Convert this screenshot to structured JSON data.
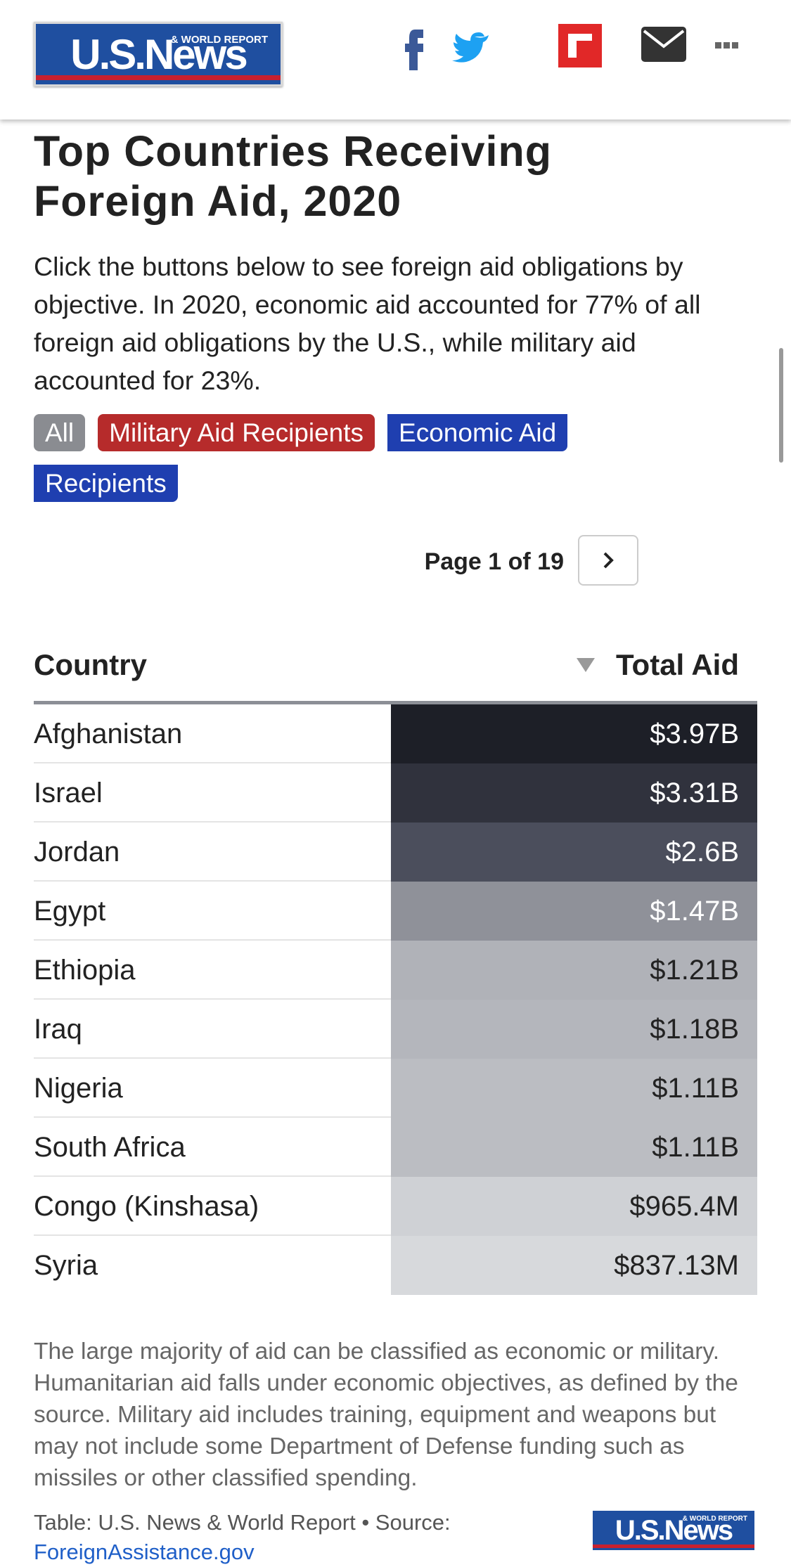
{
  "header": {
    "logo": {
      "name": "U.S.News",
      "tagline": "& WORLD REPORT"
    }
  },
  "title": "Top Countries Receiving Foreign Aid, 2020",
  "description": "Click the buttons below to see foreign aid obligations by objective. In 2020, economic aid accounted for 77% of all foreign aid obligations by the U.S., while military aid accounted for 23%.",
  "filters": [
    "All",
    "Military Aid Recipients",
    "Economic Aid Recipients"
  ],
  "pagination": "Page 1 of 19",
  "table": {
    "columns": [
      "Country",
      "Total Aid"
    ],
    "rows": [
      [
        "Afghanistan",
        "$3.97B"
      ],
      [
        "Israel",
        "$3.31B"
      ],
      [
        "Jordan",
        "$2.6B"
      ],
      [
        "Egypt",
        "$1.47B"
      ],
      [
        "Ethiopia",
        "$1.21B"
      ],
      [
        "Iraq",
        "$1.18B"
      ],
      [
        "Nigeria",
        "$1.11B"
      ],
      [
        "South Africa",
        "$1.11B"
      ],
      [
        "Congo (Kinshasa)",
        "$965.4M"
      ],
      [
        "Syria",
        "$837.13M"
      ]
    ],
    "cell_colors": [
      "#1d1f27",
      "#30323d",
      "#4b4e5c",
      "#8f9199",
      "#b0b2b8",
      "#b4b6bc",
      "#bbbdc2",
      "#bbbdc2",
      "#cfd1d5",
      "#d7d9dc"
    ]
  },
  "footnote": "The large majority of aid can be classified as economic or military. Humanitarian aid falls under economic objectives, as defined by the source. Military aid includes training, equipment and weapons but may not include some Department of Defense funding such as missiles or other classified spending.",
  "source": "Table: U.S. News & World Report • Source:",
  "source_link": "ForeignAssistance.gov"
}
